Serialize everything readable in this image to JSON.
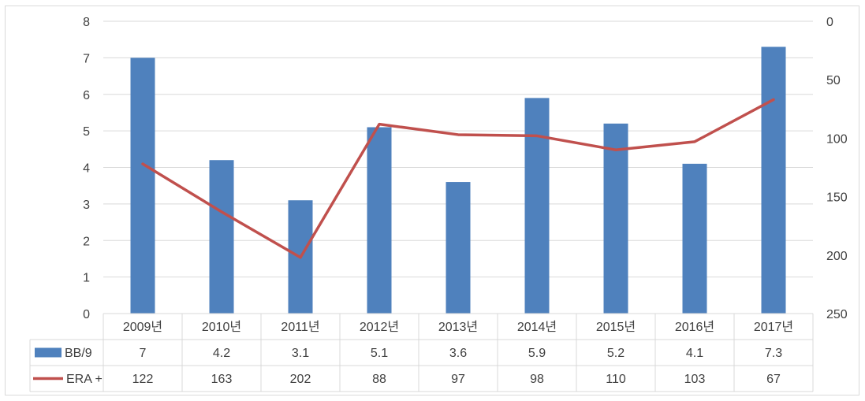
{
  "chart_data": {
    "type": "bar",
    "categories": [
      "2009년",
      "2010년",
      "2011년",
      "2012년",
      "2013년",
      "2014년",
      "2015년",
      "2016년",
      "2017년"
    ],
    "series": [
      {
        "name": "BB/9",
        "type": "bar",
        "axis": "left",
        "color": "#4f81bd",
        "values": [
          7,
          4.2,
          3.1,
          5.1,
          3.6,
          5.9,
          5.2,
          4.1,
          7.3
        ],
        "labels": [
          "7",
          "4.2",
          "3.1",
          "5.1",
          "3.6",
          "5.9",
          "5.2",
          "4.1",
          "7.3"
        ]
      },
      {
        "name": "ERA+",
        "type": "line",
        "axis": "right",
        "color": "#c0504d",
        "values": [
          122,
          163,
          202,
          88,
          97,
          98,
          110,
          103,
          67
        ],
        "labels": [
          "122",
          "163",
          "202",
          "88",
          "97",
          "98",
          "110",
          "103",
          "67"
        ]
      }
    ],
    "y_left": {
      "min": 0,
      "max": 8,
      "ticks": [
        "0",
        "1",
        "2",
        "3",
        "4",
        "5",
        "6",
        "7",
        "8"
      ]
    },
    "y_right": {
      "min": 0,
      "max": 250,
      "reversed": true,
      "ticks": [
        "0",
        "50",
        "100",
        "150",
        "200",
        "250"
      ]
    },
    "grid": true,
    "legend": "data-table",
    "data_table": true,
    "gridline_color": "#d9d9d9"
  }
}
